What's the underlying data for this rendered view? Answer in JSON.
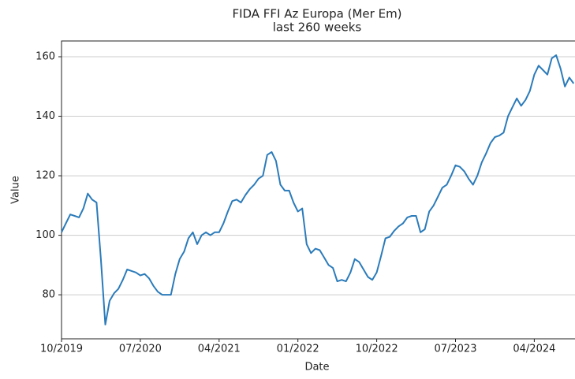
{
  "chart_data": {
    "type": "line",
    "title": "FIDA FFI Az Europa (Mer Em)",
    "subtitle": "last 260 weeks",
    "x_label": "Date",
    "y_label": "Value",
    "x": [
      "10/2019",
      "10/2019",
      "11/2019",
      "11/2019",
      "12/2019",
      "12/2019",
      "01/2020",
      "01/2020",
      "02/2020",
      "02/2020",
      "03/2020",
      "03/2020",
      "04/2020",
      "04/2020",
      "05/2020",
      "05/2020",
      "06/2020",
      "06/2020",
      "07/2020",
      "07/2020",
      "08/2020",
      "08/2020",
      "09/2020",
      "09/2020",
      "10/2020",
      "10/2020",
      "11/2020",
      "11/2020",
      "12/2020",
      "12/2020",
      "01/2021",
      "01/2021",
      "02/2021",
      "02/2021",
      "03/2021",
      "03/2021",
      "04/2021",
      "04/2021",
      "05/2021",
      "05/2021",
      "06/2021",
      "06/2021",
      "07/2021",
      "07/2021",
      "08/2021",
      "08/2021",
      "09/2021",
      "09/2021",
      "10/2021",
      "10/2021",
      "11/2021",
      "11/2021",
      "12/2021",
      "12/2021",
      "01/2022",
      "01/2022",
      "02/2022",
      "02/2022",
      "03/2022",
      "03/2022",
      "04/2022",
      "04/2022",
      "05/2022",
      "05/2022",
      "06/2022",
      "06/2022",
      "07/2022",
      "07/2022",
      "08/2022",
      "08/2022",
      "09/2022",
      "09/2022",
      "10/2022",
      "10/2022",
      "11/2022",
      "11/2022",
      "12/2022",
      "12/2022",
      "01/2023",
      "01/2023",
      "02/2023",
      "02/2023",
      "03/2023",
      "03/2023",
      "04/2023",
      "04/2023",
      "05/2023",
      "05/2023",
      "06/2023",
      "06/2023",
      "07/2023",
      "07/2023",
      "08/2023",
      "08/2023",
      "09/2023",
      "09/2023",
      "10/2023",
      "10/2023",
      "11/2023",
      "11/2023",
      "12/2023",
      "12/2023",
      "01/2024",
      "01/2024",
      "02/2024",
      "02/2024",
      "03/2024",
      "03/2024",
      "04/2024",
      "04/2024",
      "05/2024",
      "05/2024",
      "06/2024",
      "06/2024",
      "07/2024",
      "07/2024",
      "08/2024",
      "08/2024"
    ],
    "series": [
      {
        "color": "#2b7bba",
        "values": [
          101,
          104,
          107,
          106.5,
          106,
          109,
          114,
          112,
          111,
          92,
          70,
          78,
          80.5,
          82,
          85,
          88.5,
          88,
          87.5,
          86.5,
          87,
          85.5,
          83,
          81,
          80,
          80,
          80,
          87,
          92,
          94.5,
          99,
          101,
          97,
          100,
          101,
          100,
          101,
          101,
          104,
          108,
          111.5,
          112,
          111,
          113.5,
          115.5,
          117,
          119,
          120,
          127,
          128,
          125,
          117,
          115,
          115,
          111,
          108,
          109,
          97,
          94,
          95.5,
          95,
          92.5,
          90,
          89,
          84.5,
          85,
          84.5,
          87.5,
          92,
          91,
          88.5,
          86,
          85,
          87.5,
          93,
          99,
          99.5,
          101.5,
          103,
          104,
          106,
          106.5,
          106.5,
          101,
          102,
          108,
          110,
          113,
          116,
          117,
          120,
          123.5,
          123,
          121.5,
          119,
          117,
          120,
          124.5,
          127.5,
          131,
          133,
          133.5,
          134.5,
          140,
          143,
          146,
          143.5,
          145.5,
          148.5,
          154,
          157,
          155.5,
          154,
          159.5,
          160.5,
          156,
          150,
          153,
          151
        ]
      }
    ],
    "xticks": [
      "10/2019",
      "07/2020",
      "04/2021",
      "01/2022",
      "10/2022",
      "07/2023",
      "04/2024"
    ],
    "ylim": [
      65.2,
      165.3
    ],
    "yticks": [
      80,
      100,
      120,
      140,
      160
    ],
    "grid": true
  }
}
